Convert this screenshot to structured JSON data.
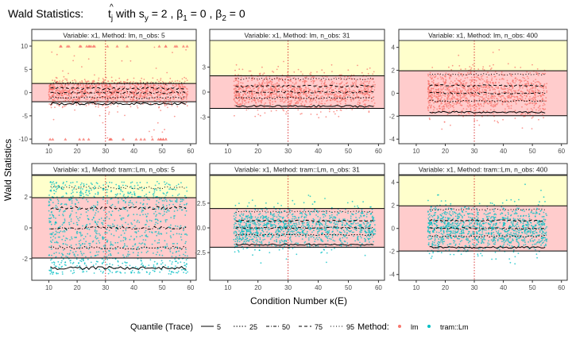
{
  "figure": {
    "title_prefix": "Wald Statistics: ",
    "title_formula": "t̂j with sy = 2 , β1 = 0 , β2 = 0",
    "xlabel": "Condition Number κ(E)",
    "ylabel": "Wald Statistics",
    "legend": {
      "quantile_title": "Quantile (Trace)",
      "quantiles": [
        {
          "label": "5",
          "dash": "solid"
        },
        {
          "label": "25",
          "dash": "dotted"
        },
        {
          "label": "50",
          "dash": "dotdash"
        },
        {
          "label": "75",
          "dash": "dashed"
        },
        {
          "label": "95",
          "dash": "dotted-fine"
        }
      ],
      "method_title": "Method:",
      "methods": [
        {
          "label": "lm",
          "color": "#f8766d"
        },
        {
          "label": "tram::Lm",
          "color": "#00bfc4"
        }
      ]
    }
  },
  "colors": {
    "lm": "#f8766d",
    "tram": "#00bfc4",
    "band_yellow": "#ffffcc",
    "band_red": "#ffcccc",
    "vline": "#d62728"
  },
  "chart_data": [
    {
      "type": "scatter",
      "strip": "Variable: x1, Method: lm, n_obs: 5",
      "method": "lm",
      "xlim": [
        4,
        62
      ],
      "ylim": [
        -11,
        11.2
      ],
      "x_ticks": [
        10,
        20,
        30,
        40,
        50,
        60
      ],
      "y_ticks": [
        -10,
        -5,
        0,
        5,
        10
      ],
      "x_range": [
        10,
        59
      ],
      "hlines": [
        1.96,
        -1.96
      ],
      "vline_x": 30,
      "band_yellow": [
        1.96,
        11.2
      ],
      "band_red": [
        -1.96,
        1.96
      ],
      "spread_sd": 1.6,
      "outliers_clip": 10,
      "quantile_levels": [
        -2.4,
        -1.1,
        -0.05,
        0.9,
        2.0
      ],
      "jitter_amp": 0.25
    },
    {
      "type": "scatter",
      "strip": "Variable: x1, Method: lm, n_obs: 31",
      "method": "lm",
      "xlim": [
        4,
        62
      ],
      "ylim": [
        -6.2,
        6.2
      ],
      "x_ticks": [
        10,
        20,
        30,
        40,
        50,
        60
      ],
      "y_ticks": [
        -3,
        0,
        3
      ],
      "x_range": [
        12,
        59
      ],
      "hlines": [
        1.96,
        -1.96
      ],
      "vline_x": 30,
      "band_yellow": [
        1.96,
        6.2
      ],
      "band_red": [
        -1.96,
        1.96
      ],
      "spread_sd": 1.1,
      "quantile_levels": [
        -1.7,
        -0.7,
        0.0,
        0.7,
        1.6
      ],
      "jitter_amp": 0.12
    },
    {
      "type": "scatter",
      "strip": "Variable: x1, Method: lm, n_obs: 400",
      "method": "lm",
      "xlim": [
        4,
        62
      ],
      "ylim": [
        -4.4,
        4.6
      ],
      "x_ticks": [
        10,
        20,
        30,
        40,
        50,
        60
      ],
      "y_ticks": [
        -4,
        -2,
        0,
        2,
        4
      ],
      "x_range": [
        14,
        55
      ],
      "hlines": [
        1.96,
        -1.96
      ],
      "vline_x": 30,
      "band_yellow": [
        1.96,
        4.6
      ],
      "band_red": [
        -1.96,
        1.96
      ],
      "spread_sd": 1.0,
      "quantile_levels": [
        -1.65,
        -0.68,
        0.0,
        0.68,
        1.65
      ],
      "jitter_amp": 0.08
    },
    {
      "type": "scatter",
      "strip": "Variable: x1, Method: tram::Lm, n_obs: 5",
      "method": "tram",
      "xlim": [
        4,
        62
      ],
      "ylim": [
        -3.4,
        3.4
      ],
      "x_ticks": [
        10,
        20,
        30,
        40,
        50,
        60
      ],
      "y_ticks": [
        -2,
        0,
        2
      ],
      "x_range": [
        10,
        59
      ],
      "hlines": [
        1.96,
        -1.96
      ],
      "vline_x": 30,
      "band_yellow": [
        1.96,
        3.4
      ],
      "band_red": [
        -1.96,
        1.96
      ],
      "spread_sd": 1.6,
      "uniform": [
        -3.0,
        3.0
      ],
      "quantile_levels": [
        -2.6,
        -1.3,
        0.0,
        1.3,
        2.6
      ],
      "jitter_amp": 0.1
    },
    {
      "type": "scatter",
      "strip": "Variable: x1, Method: tram::Lm, n_obs: 31",
      "method": "tram",
      "xlim": [
        4,
        62
      ],
      "ylim": [
        -5.3,
        5.3
      ],
      "x_ticks": [
        10,
        20,
        30,
        40,
        50,
        60
      ],
      "y_ticks": [
        -2.5,
        0.0,
        2.5
      ],
      "x_range": [
        12,
        59
      ],
      "hlines": [
        1.96,
        -1.96
      ],
      "vline_x": 30,
      "band_yellow": [
        1.96,
        5.3
      ],
      "band_red": [
        -1.96,
        1.96
      ],
      "spread_sd": 1.05,
      "quantile_levels": [
        -1.7,
        -0.7,
        0.0,
        0.7,
        1.65
      ],
      "jitter_amp": 0.08
    },
    {
      "type": "scatter",
      "strip": "Variable: x1, Method: tram::Lm, n_obs: 400",
      "method": "tram",
      "xlim": [
        4,
        62
      ],
      "ylim": [
        -4.5,
        4.6
      ],
      "x_ticks": [
        10,
        20,
        30,
        40,
        50,
        60
      ],
      "y_ticks": [
        -4,
        -2,
        0,
        2,
        4
      ],
      "x_range": [
        14,
        55
      ],
      "hlines": [
        1.96,
        -1.96
      ],
      "vline_x": 30,
      "band_yellow": [
        1.96,
        4.6
      ],
      "band_red": [
        -1.96,
        1.96
      ],
      "spread_sd": 1.0,
      "quantile_levels": [
        -1.65,
        -0.68,
        0.0,
        0.68,
        1.65
      ],
      "jitter_amp": 0.08
    }
  ]
}
